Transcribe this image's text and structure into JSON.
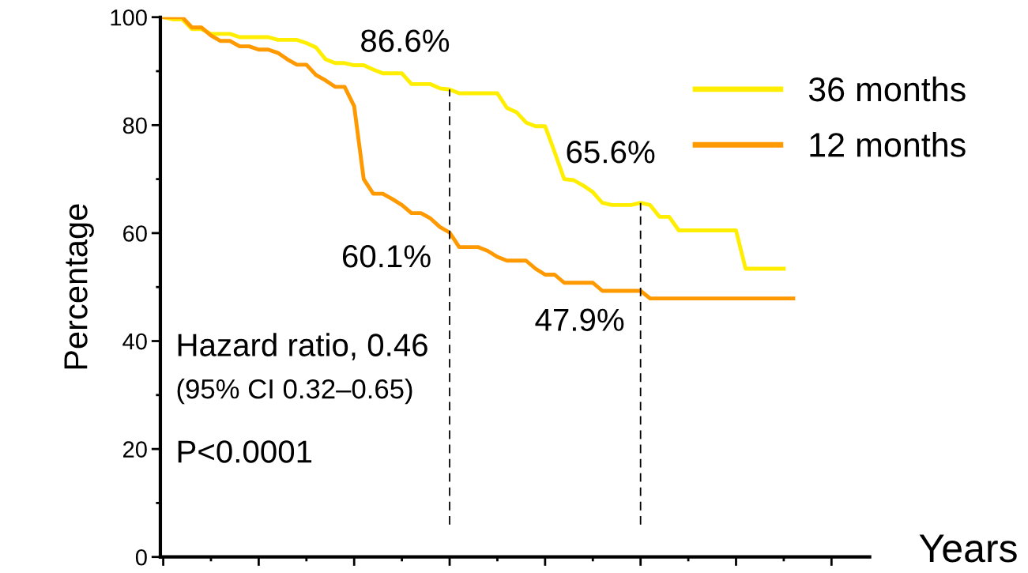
{
  "chart_data": {
    "type": "line",
    "xlabel": "Years",
    "ylabel": "Percentage",
    "categories": [
      null,
      null,
      null,
      null,
      null,
      null,
      null,
      null,
      null,
      null,
      null,
      null,
      null,
      null,
      null,
      null,
      null,
      null,
      null,
      null,
      null,
      null,
      null,
      null,
      null,
      null,
      null,
      null,
      null,
      null,
      null,
      null,
      null,
      null,
      null,
      null,
      null,
      null,
      null,
      null,
      null,
      null,
      null,
      null,
      null,
      null,
      null,
      null,
      null,
      null,
      null,
      null,
      null,
      null,
      null,
      null,
      null,
      null,
      null,
      null,
      null,
      null,
      null,
      null,
      null,
      null,
      null,
      null,
      null,
      null,
      null,
      null,
      null,
      null
    ],
    "series": [
      {
        "name": "36 months",
        "color": "#ffee00",
        "values": [
          100,
          99.6,
          99.6,
          97.8,
          97.8,
          96.9,
          96.9,
          96.9,
          96.3,
          96.3,
          96.3,
          96.3,
          95.8,
          95.8,
          95.8,
          95.2,
          94.4,
          92.2,
          91.5,
          91.5,
          91.1,
          91.1,
          90.3,
          89.6,
          89.6,
          89.6,
          87.6,
          87.6,
          87.6,
          86.8,
          86.6,
          85.9,
          85.9,
          85.9,
          85.9,
          85.9,
          83.2,
          82.4,
          80.5,
          79.8,
          79.8,
          75.0,
          70.0,
          69.8,
          68.8,
          67.6,
          65.6,
          65.2,
          65.2,
          65.2,
          65.6,
          65.2,
          63.0,
          63.0,
          60.5,
          60.5,
          60.5,
          60.5,
          60.5,
          60.5,
          60.5,
          53.4,
          53.4,
          53.4,
          53.4,
          53.4,
          null,
          null,
          null,
          null,
          null,
          null,
          null,
          null
        ]
      },
      {
        "name": "12 months",
        "color": "#ff9900",
        "values": [
          100,
          100,
          100,
          98.1,
          98.1,
          96.6,
          95.6,
          95.6,
          94.6,
          94.6,
          94.0,
          94.0,
          93.4,
          92.2,
          91.2,
          91.2,
          89.3,
          88.3,
          87.1,
          87.1,
          83.5,
          70.0,
          67.3,
          67.3,
          66.3,
          65.2,
          63.7,
          63.7,
          62.7,
          61.1,
          60.1,
          57.4,
          57.4,
          57.4,
          56.7,
          55.6,
          54.9,
          54.9,
          54.9,
          53.4,
          52.3,
          52.3,
          50.8,
          50.8,
          50.8,
          50.8,
          49.3,
          49.3,
          49.3,
          49.3,
          49.3,
          47.9,
          47.9,
          47.9,
          47.9,
          47.9,
          47.9,
          47.9,
          47.9,
          47.9,
          47.9,
          47.9,
          47.9,
          47.9,
          47.9,
          47.9,
          47.9,
          null,
          null,
          null,
          null,
          null,
          null,
          null
        ]
      }
    ],
    "ylim": [
      0,
      100
    ],
    "yticks": [
      0,
      20,
      40,
      60,
      80,
      100
    ],
    "annotations": [
      "86.6%",
      "65.6%",
      "60.1%",
      "47.9%",
      "Hazard ratio, 0.46",
      "(95% CI 0.32–0.65)",
      "P<0.0001"
    ],
    "legend": "top right",
    "grid": false,
    "tick_labels": "y"
  }
}
